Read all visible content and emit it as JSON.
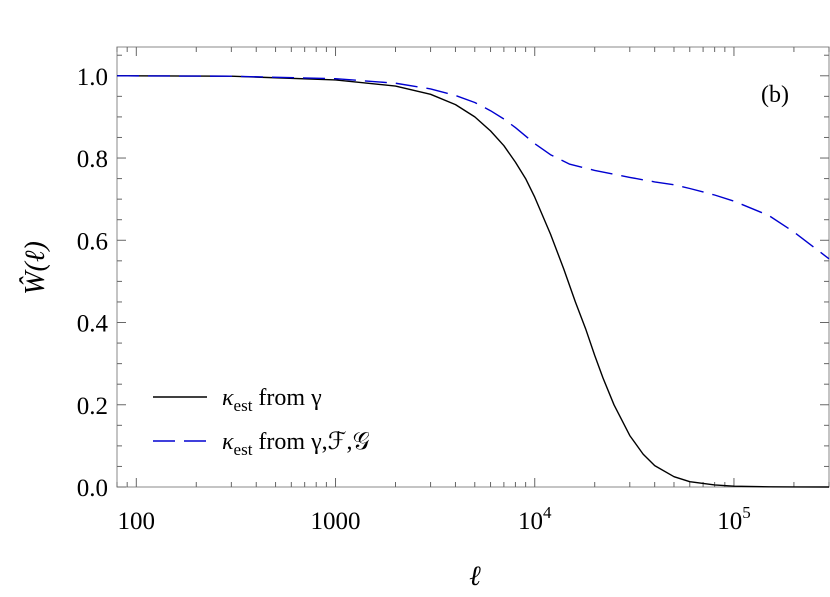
{
  "chart_data": {
    "type": "line",
    "panel_label": "(b)",
    "xlabel": "ℓ",
    "ylabel": "Ŵ(ℓ)",
    "x_scale": "log",
    "xlim": [
      80,
      300000
    ],
    "ylim": [
      0.0,
      1.07
    ],
    "x_ticks": [
      {
        "value": 100,
        "label": "100"
      },
      {
        "value": 1000,
        "label": "1000"
      },
      {
        "value": 10000,
        "base": "10",
        "exp": "4"
      },
      {
        "value": 100000,
        "base": "10",
        "exp": "5"
      }
    ],
    "y_ticks": [
      {
        "value": 0.0,
        "label": "0.0"
      },
      {
        "value": 0.2,
        "label": "0.2"
      },
      {
        "value": 0.4,
        "label": "0.4"
      },
      {
        "value": 0.6,
        "label": "0.6"
      },
      {
        "value": 0.8,
        "label": "0.8"
      },
      {
        "value": 1.0,
        "label": "1.0"
      }
    ],
    "grid": false,
    "legend_position": "bottom-left",
    "series": [
      {
        "name": "κest from γ",
        "legend_symbol": "κ",
        "legend_sub": "est",
        "legend_rest": " from γ",
        "color": "#000000",
        "style": "solid",
        "x": [
          80,
          300,
          1000,
          2000,
          3000,
          4000,
          5000,
          6000,
          7000,
          8000,
          9000,
          10000,
          12000,
          14000,
          16000,
          18000,
          20000,
          22000,
          25000,
          30000,
          35000,
          40000,
          50000,
          60000,
          80000,
          100000,
          150000,
          200000,
          300000
        ],
        "values": [
          1.0,
          0.999,
          0.99,
          0.975,
          0.955,
          0.93,
          0.9,
          0.866,
          0.83,
          0.79,
          0.75,
          0.705,
          0.615,
          0.53,
          0.45,
          0.385,
          0.32,
          0.265,
          0.2,
          0.125,
          0.08,
          0.052,
          0.025,
          0.013,
          0.005,
          0.002,
          0.0005,
          0.0002,
          0.0
        ]
      },
      {
        "name": "κest from γ,F,G",
        "legend_symbol": "κ",
        "legend_sub": "est",
        "legend_rest": " from γ,ℱ,𝒢",
        "color": "#0000d0",
        "style": "dashed",
        "x": [
          80,
          300,
          1000,
          2000,
          3000,
          4000,
          5000,
          6000,
          7000,
          8000,
          10000,
          12000,
          15000,
          20000,
          30000,
          40000,
          50000,
          60000,
          80000,
          100000,
          150000,
          200000,
          300000
        ],
        "values": [
          1.0,
          0.999,
          0.993,
          0.982,
          0.968,
          0.952,
          0.935,
          0.915,
          0.895,
          0.874,
          0.835,
          0.808,
          0.785,
          0.77,
          0.753,
          0.742,
          0.735,
          0.726,
          0.71,
          0.695,
          0.66,
          0.62,
          0.555
        ]
      }
    ]
  }
}
